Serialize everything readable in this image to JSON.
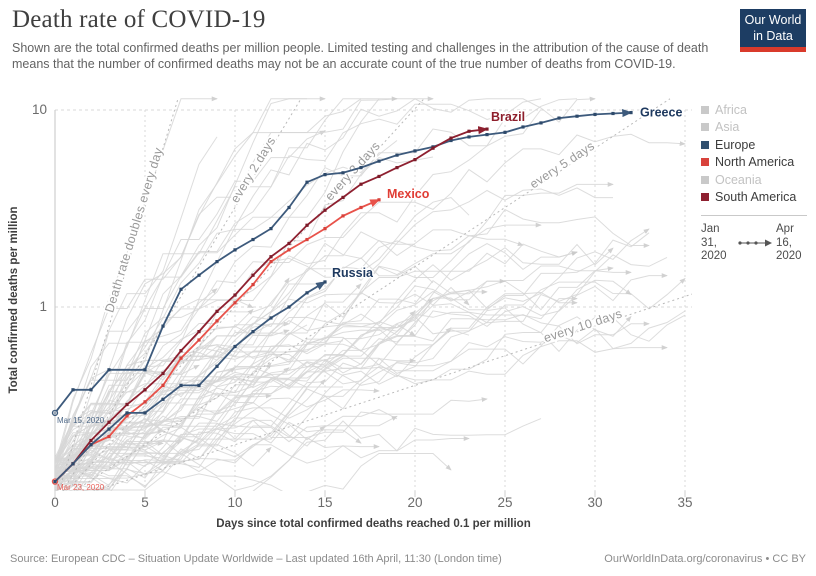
{
  "header": {
    "title": "Death rate of COVID-19",
    "subtitle": "Shown are the total confirmed deaths per million people. Limited testing and challenges in the attribution of the cause of death means that the number of confirmed deaths may not be an accurate count of the true number of deaths from COVID-19.",
    "logo": {
      "line1": "Our World",
      "line2": "in Data"
    }
  },
  "footer": {
    "source": "Source: European CDC – Situation Update Worldwide – Last updated 16th April, 11:30 (London time)",
    "link": "OurWorldInData.org/coronavirus • CC BY"
  },
  "legend": {
    "continents": [
      {
        "label": "Africa",
        "color": "#c9c9c9",
        "text_color": "#c2c2c2",
        "active": false
      },
      {
        "label": "Asia",
        "color": "#c9c9c9",
        "text_color": "#c2c2c2",
        "active": false
      },
      {
        "label": "Europe",
        "color": "#31506f",
        "text_color": "#3c3c3c",
        "active": true
      },
      {
        "label": "North America",
        "color": "#d8423c",
        "text_color": "#3c3c3c",
        "active": true
      },
      {
        "label": "Oceania",
        "color": "#c9c9c9",
        "text_color": "#c2c2c2",
        "active": false
      },
      {
        "label": "South America",
        "color": "#8e2030",
        "text_color": "#3c3c3c",
        "active": true
      }
    ],
    "date_start": [
      "Jan",
      "31,",
      "2020"
    ],
    "date_end": [
      "Apr",
      "16,",
      "2020"
    ]
  },
  "colors": {
    "europe_line": "#3d5a7c",
    "europe_label": "#1f3a60",
    "north_america_line": "#e8524a",
    "north_america_label": "#e03c34",
    "south_america_line": "#8e2030",
    "south_america_label": "#8e1f2c",
    "background_line": "#d7d7d7",
    "guide": "#9a9a9a",
    "grid": "#d9d9d9",
    "logo_navy": "#1d3d63",
    "logo_red": "#d93a2b"
  },
  "chart_data": {
    "type": "line",
    "scale": "log-y",
    "xlabel": "Days since total confirmed deaths reached 0.1 per million",
    "ylabel": "Total confirmed deaths per million",
    "x_ticks": [
      0,
      5,
      10,
      15,
      20,
      25,
      30,
      35
    ],
    "y_ticks": [
      1,
      10
    ],
    "xlim": [
      0,
      35.4
    ],
    "ylim": [
      0.115,
      10
    ],
    "series": [
      {
        "name": "Greece",
        "continent": "Europe",
        "color": "#3d5a7c",
        "marker_color": "#2e4a6b",
        "label_color": "#1f3a60",
        "start_annotation": "Mar 15, 2020",
        "start_ring": true,
        "label_dx": 9,
        "label_dy": 4,
        "points": [
          [
            0,
            0.29
          ],
          [
            1,
            0.38
          ],
          [
            2,
            0.38
          ],
          [
            3,
            0.48
          ],
          [
            5,
            0.48
          ],
          [
            6,
            0.8
          ],
          [
            7,
            1.23
          ],
          [
            8,
            1.45
          ],
          [
            9,
            1.7
          ],
          [
            10,
            1.95
          ],
          [
            11,
            2.2
          ],
          [
            12,
            2.5
          ],
          [
            13,
            3.2
          ],
          [
            14,
            4.3
          ],
          [
            15,
            4.7
          ],
          [
            16,
            4.8
          ],
          [
            17,
            5.1
          ],
          [
            18,
            5.5
          ],
          [
            19,
            5.9
          ],
          [
            20,
            6.2
          ],
          [
            21,
            6.5
          ],
          [
            22,
            7.0
          ],
          [
            23,
            7.3
          ],
          [
            24,
            7.5
          ],
          [
            25,
            7.7
          ],
          [
            26,
            8.2
          ],
          [
            27,
            8.6
          ],
          [
            28,
            9.1
          ],
          [
            29,
            9.3
          ],
          [
            30,
            9.5
          ],
          [
            31,
            9.6
          ],
          [
            32,
            9.7
          ]
        ]
      },
      {
        "name": "Brazil",
        "continent": "South America",
        "color": "#8e2030",
        "marker_color": "#7d1b29",
        "label_color": "#8e1f2c",
        "start_annotation": null,
        "start_ring": false,
        "label_dx": 4,
        "label_dy": -8,
        "points": [
          [
            0,
            0.13
          ],
          [
            1,
            0.16
          ],
          [
            2,
            0.21
          ],
          [
            3,
            0.26
          ],
          [
            4,
            0.32
          ],
          [
            5,
            0.38
          ],
          [
            6,
            0.46
          ],
          [
            7,
            0.6
          ],
          [
            8,
            0.75
          ],
          [
            9,
            0.95
          ],
          [
            10,
            1.15
          ],
          [
            11,
            1.45
          ],
          [
            12,
            1.8
          ],
          [
            13,
            2.1
          ],
          [
            14,
            2.6
          ],
          [
            15,
            3.1
          ],
          [
            16,
            3.6
          ],
          [
            17,
            4.2
          ],
          [
            18,
            4.6
          ],
          [
            19,
            5.1
          ],
          [
            20,
            5.6
          ],
          [
            21,
            6.4
          ],
          [
            22,
            7.2
          ],
          [
            23,
            7.8
          ],
          [
            24,
            8.0
          ]
        ]
      },
      {
        "name": "Mexico",
        "continent": "North America",
        "color": "#e8524a",
        "marker_color": "#d8423c",
        "label_color": "#e03c34",
        "start_annotation": "Mar 23, 2020",
        "start_ring": true,
        "label_dx": 8,
        "label_dy": -2,
        "points": [
          [
            0,
            0.13
          ],
          [
            1,
            0.16
          ],
          [
            2,
            0.2
          ],
          [
            3,
            0.22
          ],
          [
            4,
            0.28
          ],
          [
            5,
            0.33
          ],
          [
            6,
            0.4
          ],
          [
            7,
            0.55
          ],
          [
            8,
            0.68
          ],
          [
            9,
            0.85
          ],
          [
            10,
            1.05
          ],
          [
            11,
            1.3
          ],
          [
            12,
            1.7
          ],
          [
            13,
            1.95
          ],
          [
            14,
            2.2
          ],
          [
            15,
            2.5
          ],
          [
            16,
            2.9
          ],
          [
            17,
            3.2
          ],
          [
            18,
            3.5
          ]
        ]
      },
      {
        "name": "Russia",
        "continent": "Europe",
        "color": "#3d5a7c",
        "marker_color": "#2e4a6b",
        "label_color": "#1f3a60",
        "start_annotation": null,
        "start_ring": false,
        "label_dx": 7,
        "label_dy": -5,
        "points": [
          [
            0,
            0.13
          ],
          [
            1,
            0.16
          ],
          [
            2,
            0.2
          ],
          [
            3,
            0.24
          ],
          [
            4,
            0.29
          ],
          [
            5,
            0.29
          ],
          [
            6,
            0.34
          ],
          [
            7,
            0.4
          ],
          [
            8,
            0.4
          ],
          [
            9,
            0.5
          ],
          [
            10,
            0.63
          ],
          [
            11,
            0.75
          ],
          [
            12,
            0.88
          ],
          [
            13,
            1.0
          ],
          [
            14,
            1.18
          ],
          [
            15,
            1.34
          ]
        ]
      }
    ],
    "guide_lines": [
      {
        "label": "Death rate doubles every day",
        "doubling_days": 1,
        "label_day": 4.6
      },
      {
        "label": "every 2 days",
        "doubling_days": 2,
        "label_day": 11.2
      },
      {
        "label": "every 3 days",
        "doubling_days": 3,
        "label_day": 16.7
      },
      {
        "label": "every 5 days",
        "doubling_days": 5,
        "label_day": 28.3
      },
      {
        "label": "every 10 days",
        "doubling_days": 10,
        "label_day": 29.4
      }
    ],
    "background": {
      "note": "unlabeled country trajectories (greyed-out continents)",
      "count": 88,
      "seed": 11,
      "color": "#d7d7d7"
    }
  }
}
